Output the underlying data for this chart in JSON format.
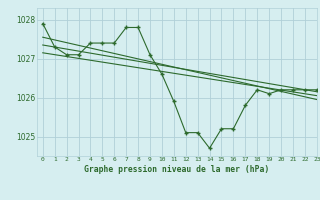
{
  "title": "Graphe pression niveau de la mer (hPa)",
  "background_color": "#d6eef0",
  "grid_color": "#b0d0d8",
  "line_color": "#2d6a2d",
  "xlim": [
    -0.5,
    23
  ],
  "ylim": [
    1024.5,
    1028.3
  ],
  "yticks": [
    1025,
    1026,
    1027,
    1028
  ],
  "xticks": [
    0,
    1,
    2,
    3,
    4,
    5,
    6,
    7,
    8,
    9,
    10,
    11,
    12,
    13,
    14,
    15,
    16,
    17,
    18,
    19,
    20,
    21,
    22,
    23
  ],
  "series1": {
    "x": [
      0,
      1,
      2,
      3,
      4,
      5,
      6,
      7,
      8,
      9,
      10,
      11,
      12,
      13,
      14,
      15,
      16,
      17,
      18,
      19,
      20,
      21,
      22,
      23
    ],
    "y": [
      1027.9,
      1027.3,
      1027.1,
      1027.1,
      1027.4,
      1027.4,
      1027.4,
      1027.8,
      1027.8,
      1027.1,
      1026.6,
      1025.9,
      1025.1,
      1025.1,
      1024.7,
      1025.2,
      1025.2,
      1025.8,
      1026.2,
      1026.1,
      1026.2,
      1026.2,
      1026.2,
      1026.2
    ]
  },
  "trend1": {
    "x": [
      0,
      23
    ],
    "y": [
      1027.35,
      1026.15
    ]
  },
  "trend2": {
    "x": [
      0,
      23
    ],
    "y": [
      1027.15,
      1026.05
    ]
  },
  "trend3": {
    "x": [
      0,
      23
    ],
    "y": [
      1027.55,
      1025.95
    ]
  }
}
